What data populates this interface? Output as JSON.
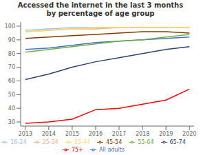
{
  "chart_data": {
    "type": "line",
    "title": "Accessed the internet in the last 3 months\nby percentage of age group",
    "x": [
      2013,
      2014,
      2015,
      2016,
      2017,
      2018,
      2019,
      2020
    ],
    "series": [
      {
        "name": "All adults",
        "color": "#4472C4",
        "values": [
          83,
          84,
          86,
          88,
          89,
          90,
          91,
          92
        ]
      },
      {
        "name": "16-24",
        "color": "#9DC3E6",
        "values": [
          97,
          98,
          99,
          99,
          99,
          99,
          99,
          99
        ]
      },
      {
        "name": "25-34",
        "color": "#F4B183",
        "values": [
          96,
          97,
          98,
          98,
          99,
          99,
          99,
          99
        ]
      },
      {
        "name": "35-44",
        "color": "#FFD966",
        "values": [
          96,
          97,
          98,
          99,
          99,
          99,
          99,
          99
        ]
      },
      {
        "name": "45-54",
        "color": "#833C00",
        "values": [
          91,
          92,
          93,
          94,
          95,
          96,
          96,
          95
        ]
      },
      {
        "name": "55-64",
        "color": "#70AD47",
        "values": [
          81,
          83,
          85,
          87,
          89,
          90,
          92,
          94
        ]
      },
      {
        "name": "65-74",
        "color": "#264478",
        "values": [
          61,
          65,
          70,
          74,
          77,
          80,
          83,
          85
        ]
      },
      {
        "name": "75+",
        "color": "#FF0000",
        "values": [
          29,
          30,
          32,
          39,
          40,
          43,
          46,
          54
        ]
      }
    ],
    "xlim": [
      2012.8,
      2020.2
    ],
    "xticks": [
      2013,
      2014,
      2015,
      2016,
      2017,
      2018,
      2019,
      2020
    ],
    "ylim": [
      27,
      103
    ],
    "yticks": [
      30,
      40,
      50,
      60,
      70,
      80,
      90,
      100
    ],
    "legend": "bottom"
  }
}
